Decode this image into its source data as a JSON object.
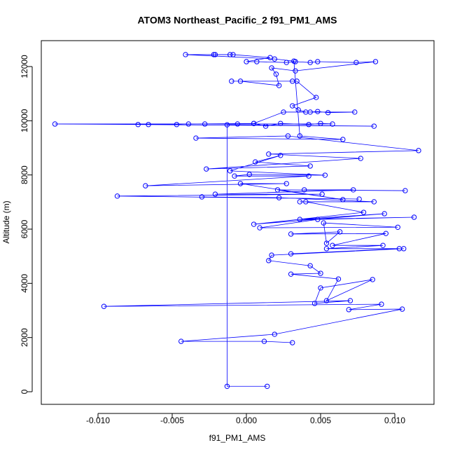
{
  "chart_data": {
    "type": "line",
    "title": "ATOM3 Northeast_Pacific_2 f91_PM1_AMS",
    "x_label": "f91_PM1_AMS",
    "y_label": "Altitude (m)",
    "xlim": [
      -0.01382,
      0.01264
    ],
    "ylim": [
      -465,
      12956
    ],
    "xticks": [
      {
        "value": -0.01,
        "label": "-0.010"
      },
      -0.005,
      {
        "value": 0,
        "label": "0.000"
      },
      0.005,
      {
        "value": 0.01,
        "label": "0.010"
      }
    ],
    "yticks": [
      0,
      2000,
      4000,
      6000,
      8000,
      10000,
      12000
    ],
    "color": "#0000ff",
    "x": [
      0.0014,
      -0.0013,
      -0.0013,
      0.0086,
      -0.0129,
      0.0058,
      0.005,
      0.0042,
      0.0023,
      0.0013,
      0.0005,
      -0.0006,
      -0.0028,
      -0.0039,
      -0.0047,
      -0.0066,
      -0.0073,
      0.0005,
      0.0025,
      0.0073,
      0.0055,
      0.0048,
      0.0043,
      0.004,
      0.0035,
      0.0031,
      0.0047,
      0.0034,
      0.0031,
      -0.001,
      -0.0004,
      0.0022,
      0.002,
      0.0017,
      0.0033,
      0.0087,
      0.0074,
      0.0048,
      0.0043,
      0.0033,
      0.0027,
      0.0007,
      0.0,
      0.0016,
      -0.0009,
      -0.0011,
      -0.0021,
      -0.0022,
      -0.0041,
      0.0019,
      0.0032,
      0.0036,
      0.0065,
      -0.0034,
      0.0028,
      0.0116,
      0.0015,
      0.0077,
      -0.0027,
      0.0043,
      0.0006,
      0.0023,
      -0.0011,
      0.0053,
      0.0002,
      -0.0008,
      0.0042,
      -0.0068,
      0.0027,
      -0.0004,
      0.0065,
      0.0021,
      0.0107,
      0.0039,
      0.0072,
      -0.0021,
      0.0051,
      -0.0087,
      0.0076,
      -0.003,
      0.0022,
      0.0086,
      0.0036,
      0.004,
      0.0079,
      0.0005,
      0.0093,
      0.0036,
      0.0113,
      0.0048,
      0.0009,
      0.0102,
      0.0052,
      0.0054,
      0.0063,
      0.003,
      0.0094,
      0.0058,
      0.0092,
      0.0054,
      0.0103,
      0.003,
      0.0106,
      0.0017,
      0.0015,
      0.0043,
      0.005,
      0.003,
      0.0062,
      0.0054,
      0.0085,
      0.005,
      0.0046,
      0.007,
      -0.0096,
      0.0091,
      0.0069,
      0.0105,
      0.0019,
      -0.0044,
      0.0012,
      0.0031
    ],
    "values": [
      200,
      200,
      9850,
      9800,
      9880,
      9880,
      9900,
      9860,
      9900,
      9800,
      9900,
      9880,
      9880,
      9880,
      9860,
      9860,
      9860,
      9900,
      10320,
      10320,
      10300,
      10340,
      10320,
      10320,
      10400,
      10550,
      10860,
      11460,
      11460,
      11460,
      11460,
      11300,
      11720,
      11950,
      11840,
      12180,
      12150,
      12180,
      12150,
      12180,
      12150,
      12180,
      12180,
      12330,
      12440,
      12440,
      12440,
      12440,
      12440,
      12280,
      12200,
      9440,
      9310,
      9360,
      9440,
      8900,
      8770,
      8610,
      8220,
      8330,
      8480,
      8720,
      8150,
      7990,
      8020,
      7960,
      7960,
      7600,
      7680,
      7680,
      7090,
      7450,
      7420,
      7450,
      7450,
      7290,
      7290,
      7220,
      7110,
      7190,
      7160,
      7010,
      7010,
      7010,
      6620,
      6180,
      6570,
      6360,
      6440,
      6360,
      6050,
      6070,
      6230,
      5480,
      5900,
      5820,
      5840,
      5400,
      5400,
      5280,
      5280,
      5090,
      5280,
      5040,
      4840,
      4650,
      4370,
      4340,
      4160,
      3360,
      4140,
      3830,
      3260,
      3360,
      3150,
      3230,
      3030,
      3050,
      2120,
      1860,
      1860,
      1810
    ]
  }
}
